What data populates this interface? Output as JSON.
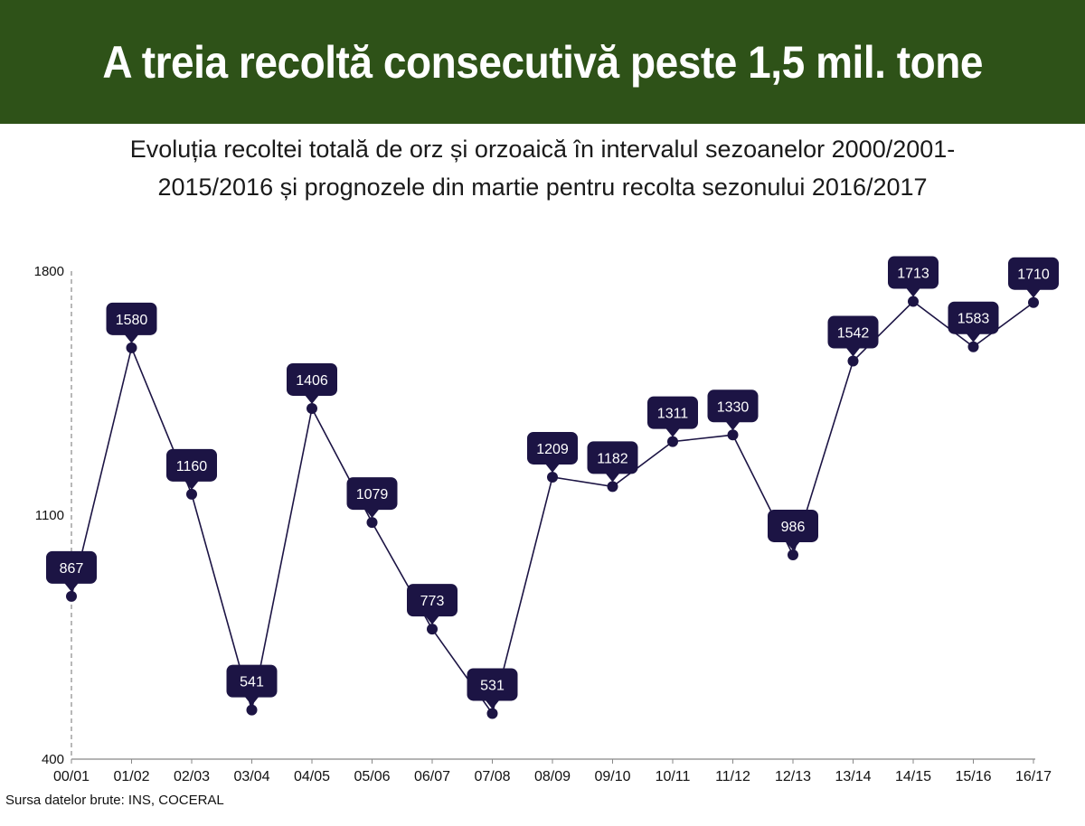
{
  "banner": {
    "title": "A treia recoltă consecutivă peste 1,5 mil. tone"
  },
  "subtitle": {
    "line1": "Evoluția recoltei totală de orz și orzoaică în intervalul sezoanelor 2000/2001-",
    "line2": "2015/2016 și prognozele din martie pentru recolta sezonului 2016/2017"
  },
  "source": "Sursa datelor brute: INS, COCERAL",
  "chart_data": {
    "type": "line",
    "categories": [
      "00/01",
      "01/02",
      "02/03",
      "03/04",
      "04/05",
      "05/06",
      "06/07",
      "07/08",
      "08/09",
      "09/10",
      "10/11",
      "11/12",
      "12/13",
      "13/14",
      "14/15",
      "15/16",
      "16/17"
    ],
    "series": [
      {
        "values": [
          867,
          1580,
          1160,
          541,
          1406,
          1079,
          773,
          531,
          1209,
          1182,
          1311,
          1330,
          986,
          1542,
          1713,
          1583,
          1710
        ]
      }
    ],
    "y_ticks": [
      400,
      1100,
      1800
    ],
    "ylim": [
      400,
      1800
    ],
    "grid": false,
    "colors": {
      "line": "#1c1444",
      "marker": "#1c1444",
      "label_bg": "#1c1444",
      "label_text": "#ffffff",
      "axis": "#888888"
    }
  }
}
